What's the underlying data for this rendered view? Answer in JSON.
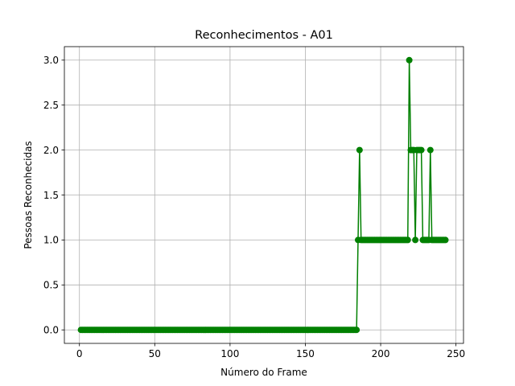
{
  "chart_data": {
    "type": "line",
    "title": "Reconhecimentos - A01",
    "xlabel": "Número do Frame",
    "ylabel": "Pessoas Reconhecidas",
    "xlim": [
      -10,
      255
    ],
    "ylim": [
      -0.15,
      3.15
    ],
    "xticks": [
      0,
      50,
      100,
      150,
      200,
      250
    ],
    "yticks": [
      0.0,
      0.5,
      1.0,
      1.5,
      2.0,
      2.5,
      3.0
    ],
    "xtick_labels": [
      "0",
      "50",
      "100",
      "150",
      "200",
      "250"
    ],
    "ytick_labels": [
      "0.0",
      "0.5",
      "1.0",
      "1.5",
      "2.0",
      "2.5",
      "3.0"
    ],
    "grid": true,
    "color": "#008000",
    "marker": "circle",
    "series": [
      {
        "segments": [
          {
            "x_start": 1,
            "x_end": 184,
            "y": 0
          },
          {
            "x_start": 185,
            "x_end": 185,
            "y": 1
          },
          {
            "x_start": 186,
            "x_end": 186,
            "y": 2
          },
          {
            "x_start": 187,
            "x_end": 218,
            "y": 1
          },
          {
            "x_start": 219,
            "x_end": 219,
            "y": 3
          },
          {
            "x_start": 220,
            "x_end": 222,
            "y": 2
          },
          {
            "x_start": 223,
            "x_end": 223,
            "y": 1
          },
          {
            "x_start": 224,
            "x_end": 227,
            "y": 2
          },
          {
            "x_start": 228,
            "x_end": 232,
            "y": 1
          },
          {
            "x_start": 233,
            "x_end": 233,
            "y": 2
          },
          {
            "x_start": 234,
            "x_end": 243,
            "y": 1
          }
        ]
      }
    ]
  }
}
